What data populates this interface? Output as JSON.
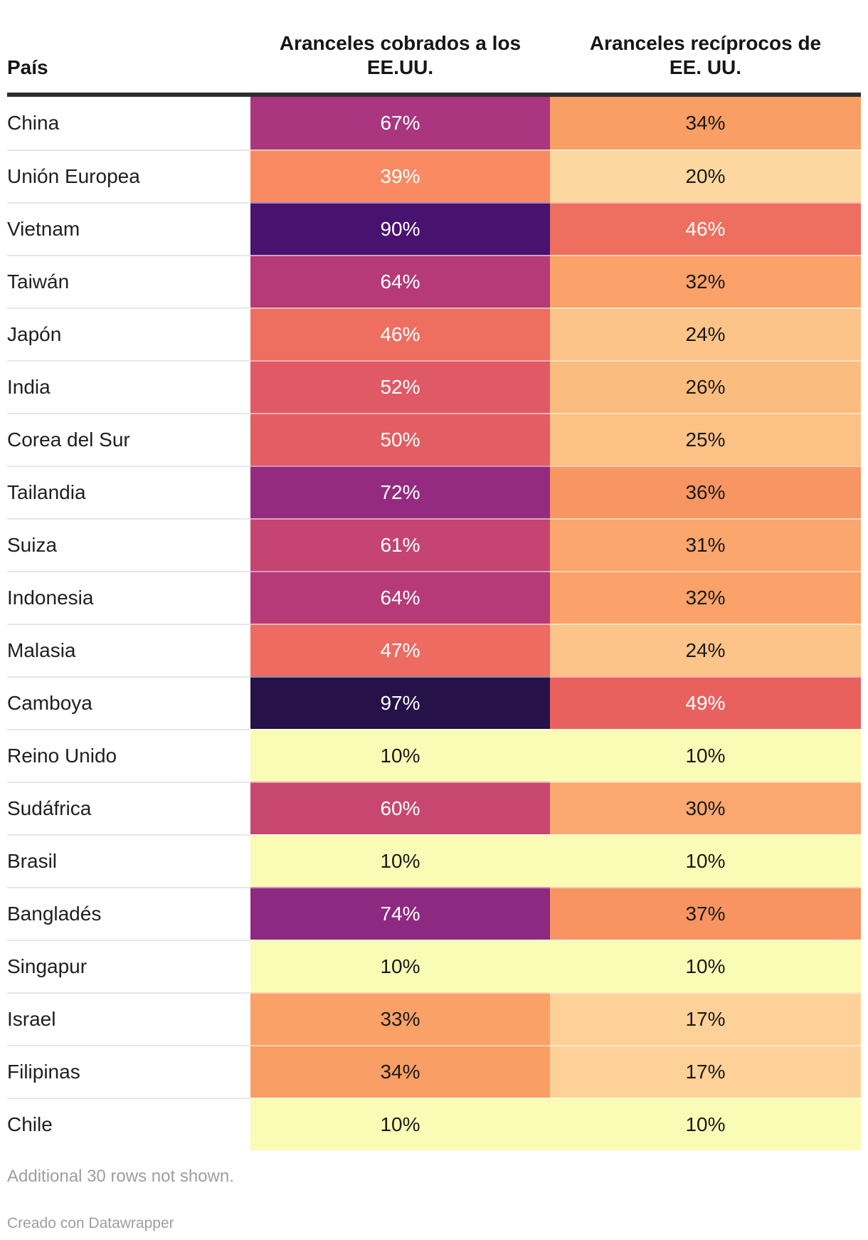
{
  "header": {
    "col_country": "País",
    "col_charged_line1": "Aranceles cobrados a los",
    "col_charged_line2": "EE.UU.",
    "col_reciprocal_line1": "Aranceles recíprocos de",
    "col_reciprocal_line2": "EE. UU."
  },
  "table": {
    "rows": [
      {
        "country": "China",
        "charged_label": "67%",
        "charged_bg": "#aa3680",
        "charged_fg": "#ffffff",
        "reciprocal_label": "34%",
        "reciprocal_bg": "#f99e64",
        "reciprocal_fg": "#1a1a1a"
      },
      {
        "country": "Unión Europea",
        "charged_label": "39%",
        "charged_bg": "#fa8a62",
        "charged_fg": "#ffffff",
        "reciprocal_label": "20%",
        "reciprocal_bg": "#fdd7a0",
        "reciprocal_fg": "#1a1a1a"
      },
      {
        "country": "Vietnam",
        "charged_label": "90%",
        "charged_bg": "#471270",
        "charged_fg": "#ffffff",
        "reciprocal_label": "46%",
        "reciprocal_bg": "#ee6e60",
        "reciprocal_fg": "#ffffff"
      },
      {
        "country": "Taiwán",
        "charged_label": "64%",
        "charged_bg": "#b63a78",
        "charged_fg": "#ffffff",
        "reciprocal_label": "32%",
        "reciprocal_bg": "#faa26a",
        "reciprocal_fg": "#1a1a1a"
      },
      {
        "country": "Japón",
        "charged_label": "46%",
        "charged_bg": "#ee6e60",
        "charged_fg": "#ffffff",
        "reciprocal_label": "24%",
        "reciprocal_bg": "#fcc489",
        "reciprocal_fg": "#1a1a1a"
      },
      {
        "country": "India",
        "charged_label": "52%",
        "charged_bg": "#e05a66",
        "charged_fg": "#ffffff",
        "reciprocal_label": "26%",
        "reciprocal_bg": "#fbbd7f",
        "reciprocal_fg": "#1a1a1a"
      },
      {
        "country": "Corea del Sur",
        "charged_label": "50%",
        "charged_bg": "#e35e62",
        "charged_fg": "#ffffff",
        "reciprocal_label": "25%",
        "reciprocal_bg": "#fcc185",
        "reciprocal_fg": "#1a1a1a"
      },
      {
        "country": "Tailandia",
        "charged_label": "72%",
        "charged_bg": "#952b80",
        "charged_fg": "#ffffff",
        "reciprocal_label": "36%",
        "reciprocal_bg": "#f89663",
        "reciprocal_fg": "#1a1a1a"
      },
      {
        "country": "Suiza",
        "charged_label": "61%",
        "charged_bg": "#c64471",
        "charged_fg": "#ffffff",
        "reciprocal_label": "31%",
        "reciprocal_bg": "#faa66d",
        "reciprocal_fg": "#1a1a1a"
      },
      {
        "country": "Indonesia",
        "charged_label": "64%",
        "charged_bg": "#b63a78",
        "charged_fg": "#ffffff",
        "reciprocal_label": "32%",
        "reciprocal_bg": "#faa26a",
        "reciprocal_fg": "#1a1a1a"
      },
      {
        "country": "Malasia",
        "charged_label": "47%",
        "charged_bg": "#ed6b60",
        "charged_fg": "#ffffff",
        "reciprocal_label": "24%",
        "reciprocal_bg": "#fcc489",
        "reciprocal_fg": "#1a1a1a"
      },
      {
        "country": "Camboya",
        "charged_label": "97%",
        "charged_bg": "#261149",
        "charged_fg": "#ffffff",
        "reciprocal_label": "49%",
        "reciprocal_bg": "#e9615f",
        "reciprocal_fg": "#ffffff"
      },
      {
        "country": "Reino Unido",
        "charged_label": "10%",
        "charged_bg": "#fafbb5",
        "charged_fg": "#1a1a1a",
        "reciprocal_label": "10%",
        "reciprocal_bg": "#fafbb5",
        "reciprocal_fg": "#1a1a1a"
      },
      {
        "country": "Sudáfrica",
        "charged_label": "60%",
        "charged_bg": "#c84770",
        "charged_fg": "#ffffff",
        "reciprocal_label": "30%",
        "reciprocal_bg": "#faa870",
        "reciprocal_fg": "#1a1a1a"
      },
      {
        "country": "Brasil",
        "charged_label": "10%",
        "charged_bg": "#fafbb5",
        "charged_fg": "#1a1a1a",
        "reciprocal_label": "10%",
        "reciprocal_bg": "#fafbb5",
        "reciprocal_fg": "#1a1a1a"
      },
      {
        "country": "Bangladés",
        "charged_label": "74%",
        "charged_bg": "#8e2981",
        "charged_fg": "#ffffff",
        "reciprocal_label": "37%",
        "reciprocal_bg": "#f89461",
        "reciprocal_fg": "#1a1a1a"
      },
      {
        "country": "Singapur",
        "charged_label": "10%",
        "charged_bg": "#fafbb5",
        "charged_fg": "#1a1a1a",
        "reciprocal_label": "10%",
        "reciprocal_bg": "#fafbb5",
        "reciprocal_fg": "#1a1a1a"
      },
      {
        "country": "Israel",
        "charged_label": "33%",
        "charged_bg": "#f9a167",
        "charged_fg": "#1a1a1a",
        "reciprocal_label": "17%",
        "reciprocal_bg": "#fdd197",
        "reciprocal_fg": "#1a1a1a"
      },
      {
        "country": "Filipinas",
        "charged_label": "34%",
        "charged_bg": "#f99e64",
        "charged_fg": "#1a1a1a",
        "reciprocal_label": "17%",
        "reciprocal_bg": "#fdd197",
        "reciprocal_fg": "#1a1a1a"
      },
      {
        "country": "Chile",
        "charged_label": "10%",
        "charged_bg": "#fafbb5",
        "charged_fg": "#1a1a1a",
        "reciprocal_label": "10%",
        "reciprocal_bg": "#fafbb5",
        "reciprocal_fg": "#1a1a1a"
      }
    ]
  },
  "footer": {
    "note": "Additional 30 rows not shown.",
    "credit": "Creado con Datawrapper"
  },
  "colors": {
    "header_rule": "#2e2e2e",
    "header_text": "#161616",
    "country_text": "#1f1f1f",
    "row_divider": "#e7e7e7",
    "note_text": "#9e9e9e",
    "heatmap_low": "#fafbb5",
    "heatmap_high": "#261149"
  },
  "chart_data": {
    "type": "table",
    "subtype": "heatmap",
    "categories": [
      "China",
      "Unión Europea",
      "Vietnam",
      "Taiwán",
      "Japón",
      "India",
      "Corea del Sur",
      "Tailandia",
      "Suiza",
      "Indonesia",
      "Malasia",
      "Camboya",
      "Reino Unido",
      "Sudáfrica",
      "Brasil",
      "Bangladés",
      "Singapur",
      "Israel",
      "Filipinas",
      "Chile"
    ],
    "series": [
      {
        "name": "Aranceles cobrados a los EE.UU.",
        "values": [
          67,
          39,
          90,
          64,
          46,
          52,
          50,
          72,
          61,
          64,
          47,
          97,
          10,
          60,
          10,
          74,
          10,
          33,
          34,
          10
        ]
      },
      {
        "name": "Aranceles recíprocos de EE. UU.",
        "values": [
          34,
          20,
          46,
          32,
          24,
          26,
          25,
          36,
          31,
          32,
          24,
          49,
          10,
          30,
          10,
          37,
          10,
          17,
          17,
          10
        ]
      }
    ],
    "value_format": "percent",
    "note": "Additional 30 rows not shown.",
    "credit": "Creado con Datawrapper",
    "palette": "yellow-orange-red-purple sequential (low=#fafbb5, high=#261149)"
  }
}
